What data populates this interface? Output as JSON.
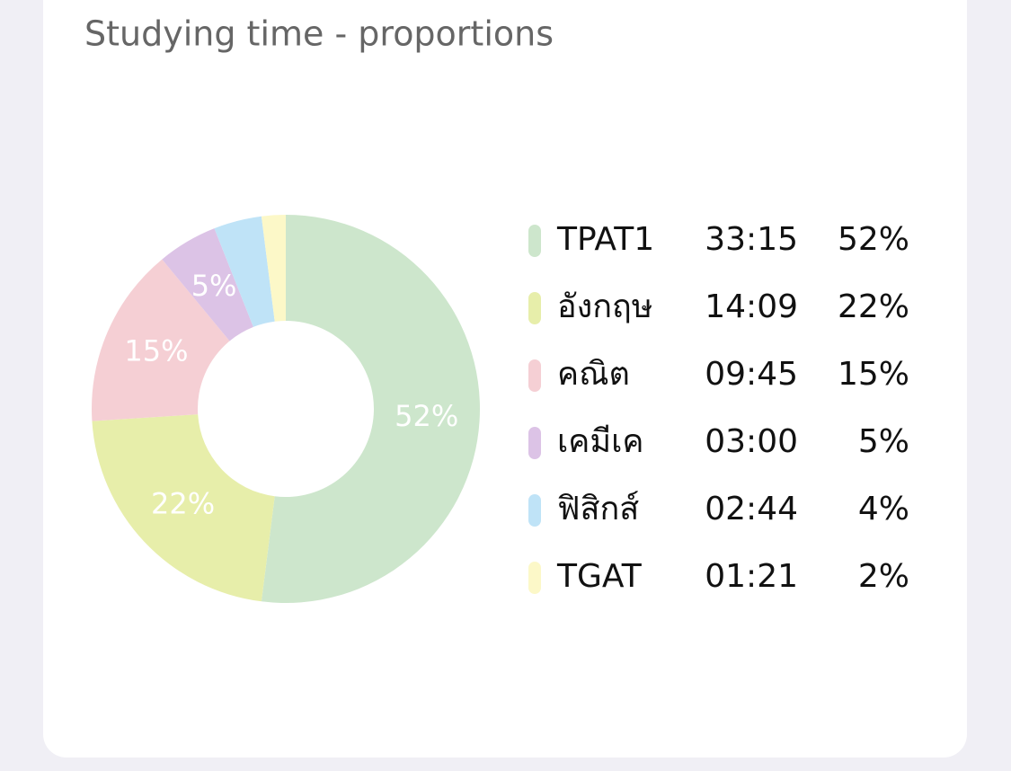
{
  "chart_data": {
    "type": "donut",
    "title": "Studying time - proportions",
    "categories": [
      "TPAT1",
      "อังกฤษ",
      "คณิต",
      "เคมีเค",
      "ฟิสิกส์",
      "TGAT"
    ],
    "durations": [
      "33:15",
      "14:09",
      "09:45",
      "03:00",
      "02:44",
      "01:21"
    ],
    "values": [
      52,
      22,
      15,
      5,
      4,
      2
    ],
    "value_labels": [
      "52%",
      "22%",
      "15%",
      "5%",
      "4%",
      "2%"
    ],
    "colors": [
      "#cde6cc",
      "#e7eeaa",
      "#f5cfd4",
      "#dcc3e6",
      "#bfe3f7",
      "#fcf8c8"
    ]
  }
}
